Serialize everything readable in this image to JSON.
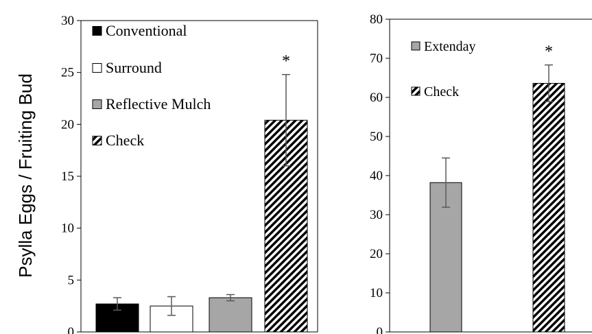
{
  "ylabel": "Psylla Eggs / Fruiting Bud",
  "colors": {
    "conventional": "#000000",
    "surround": "#ffffff",
    "reflective": "#a6a6a6",
    "extenday": "#a6a6a6",
    "error": "#595959"
  },
  "chart_data": [
    {
      "type": "bar",
      "ylim": [
        0,
        30
      ],
      "yticks": [
        0,
        5,
        10,
        15,
        20,
        25,
        30
      ],
      "categories": [
        "Conventional",
        "Surround",
        "Reflective Mulch",
        "Check"
      ],
      "series": [
        {
          "name": "Conventional",
          "value": 2.7,
          "error": 0.6,
          "fill": "#000000",
          "pattern": "solid"
        },
        {
          "name": "Surround",
          "value": 2.5,
          "error": 0.9,
          "fill": "#ffffff",
          "pattern": "solid"
        },
        {
          "name": "Reflective Mulch",
          "value": 3.3,
          "error": 0.3,
          "fill": "#a6a6a6",
          "pattern": "solid"
        },
        {
          "name": "Check",
          "value": 20.4,
          "error": 4.4,
          "fill": "#ffffff",
          "pattern": "diagonal-hatch"
        }
      ],
      "annotations": [
        {
          "category": "Check",
          "text": "*"
        }
      ],
      "legend": "top-left"
    },
    {
      "type": "bar",
      "ylim": [
        0,
        80
      ],
      "yticks": [
        0,
        10,
        20,
        30,
        40,
        50,
        60,
        70,
        80
      ],
      "categories": [
        "Extenday",
        "Check"
      ],
      "series": [
        {
          "name": "Extenday",
          "value": 38.2,
          "error": 6.3,
          "fill": "#a6a6a6",
          "pattern": "solid"
        },
        {
          "name": "Check",
          "value": 63.6,
          "error": 4.7,
          "fill": "#ffffff",
          "pattern": "diagonal-hatch"
        }
      ],
      "annotations": [
        {
          "category": "Check",
          "text": "*"
        }
      ],
      "legend": "top-left"
    }
  ]
}
